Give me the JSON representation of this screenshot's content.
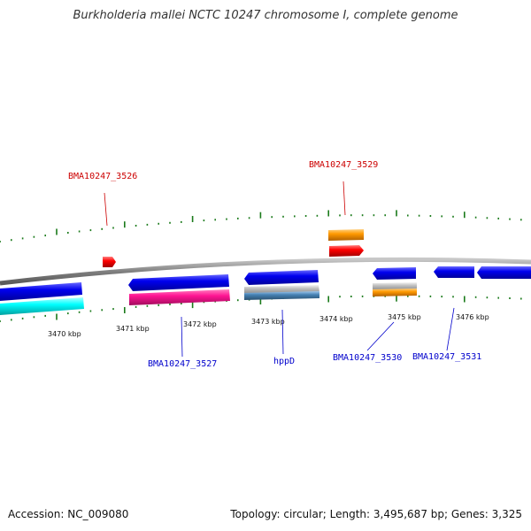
{
  "title": "Burkholderia mallei NCTC 10247 chromosome I, complete genome",
  "footer": {
    "accession": "Accession: NC_009080",
    "summary": "Topology: circular; Length: 3,495,687 bp; Genes: 3,325"
  },
  "colors": {
    "backbone": "#888888",
    "tick": "#1a7a1a",
    "forward_label": "#cc0000",
    "reverse_label": "#0000cc",
    "cds_blue": "#0000ee",
    "cds_cyan": "#00ffff",
    "cds_pink": "#ff1493",
    "cds_red": "#ff0000",
    "cds_orange": "#ff9900",
    "cds_steel": "#4682b4",
    "cds_silver": "#c0c0c0"
  },
  "tick_labels": [
    "3470 kbp",
    "3471 kbp",
    "3472 kbp",
    "3473 kbp",
    "3474 kbp",
    "3475 kbp",
    "3476 kbp"
  ],
  "gene_labels": [
    {
      "text": "BMA10247_3526",
      "strand": "forward"
    },
    {
      "text": "BMA10247_3529",
      "strand": "forward"
    },
    {
      "text": "BMA10247_3527",
      "strand": "reverse"
    },
    {
      "text": "hppD",
      "strand": "reverse"
    },
    {
      "text": "BMA10247_3530",
      "strand": "reverse"
    },
    {
      "text": "BMA10247_3531",
      "strand": "reverse"
    }
  ]
}
